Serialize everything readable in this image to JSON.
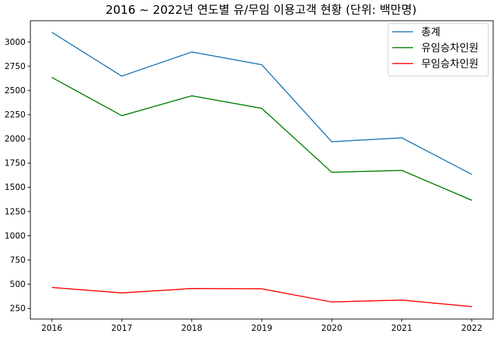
{
  "chart_data": {
    "type": "line",
    "title": "2016 ~ 2022년 연도별 유/무임 이용고객 현황 (단위: 백만명)",
    "xlabel": "",
    "ylabel": "",
    "categories": [
      "2016",
      "2017",
      "2018",
      "2019",
      "2020",
      "2021",
      "2022"
    ],
    "x_ticks": [
      "2016",
      "2017",
      "2018",
      "2019",
      "2020",
      "2021",
      "2022"
    ],
    "y_ticks": [
      "250",
      "500",
      "750",
      "1000",
      "1250",
      "1500",
      "1750",
      "2000",
      "2250",
      "2500",
      "2750",
      "3000"
    ],
    "ylim": [
      140,
      3220
    ],
    "grid": false,
    "legend_position": "top-right",
    "series": [
      {
        "name": "총계",
        "color": "#1f77b4",
        "values": [
          3100,
          2648,
          2897,
          2765,
          1971,
          2011,
          1634
        ]
      },
      {
        "name": "유임승차인원",
        "color": "#008000",
        "values": [
          2635,
          2240,
          2445,
          2315,
          1655,
          1675,
          1366
        ]
      },
      {
        "name": "무임승차인원",
        "color": "#ff0000",
        "values": [
          466,
          410,
          455,
          452,
          316,
          336,
          268
        ]
      }
    ]
  }
}
